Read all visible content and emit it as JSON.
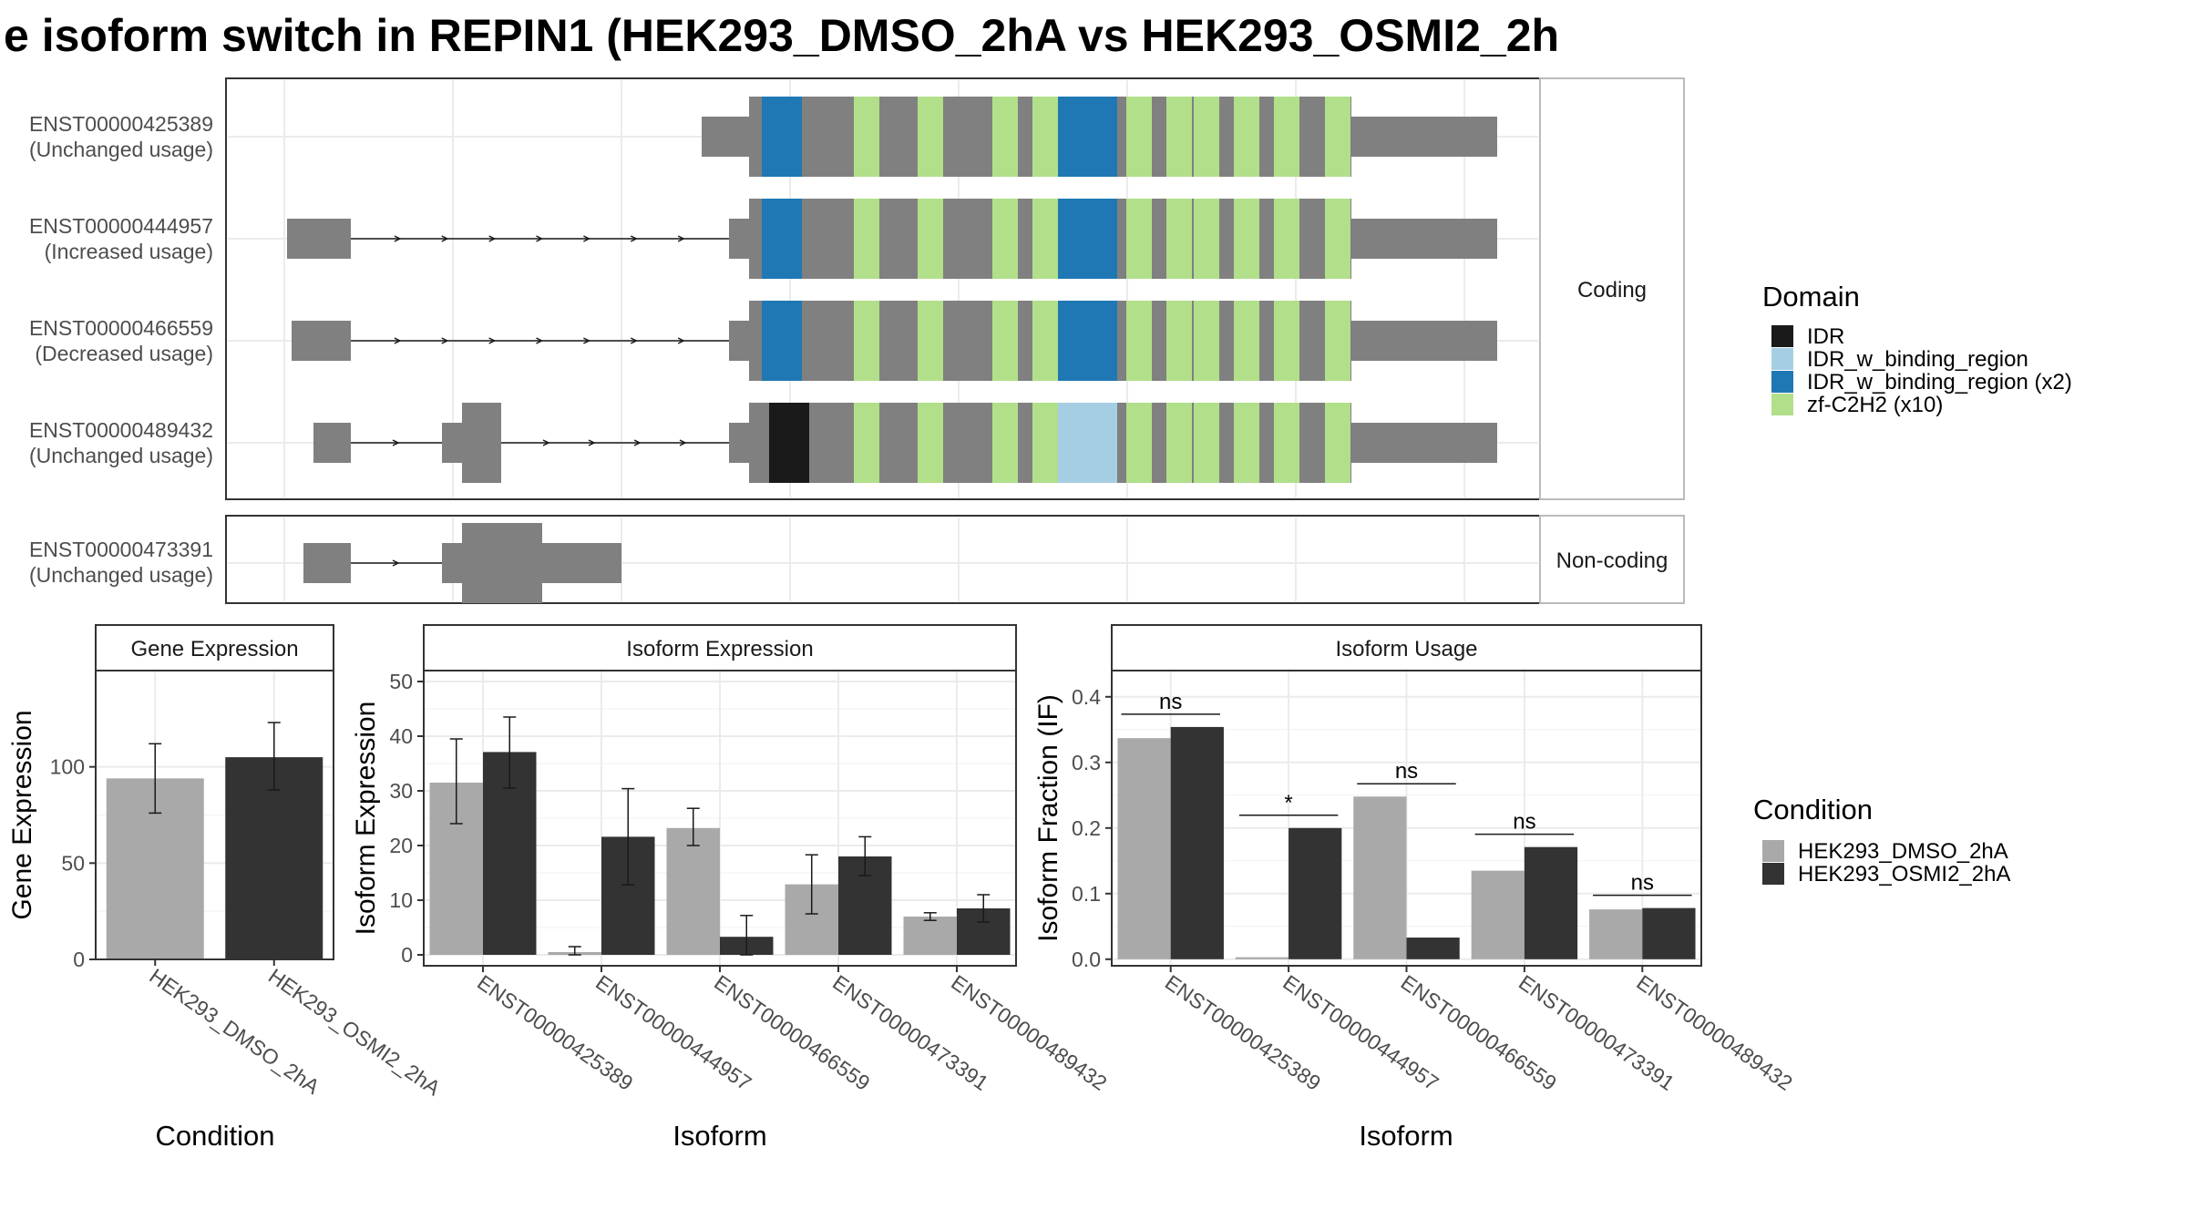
{
  "title": "e isoform switch in REPIN1 (HEK293_DMSO_2hA vs HEK293_OSMI2_2h",
  "colors": {
    "exon": "#808080",
    "idr": "#1a1a1a",
    "idr_w_binding_region": "#a6cee3",
    "idr_w_binding_region_x2": "#1f78b4",
    "zf_c2h2": "#b2df8a",
    "dmso": "#a9a9a9",
    "osmi2": "#333333"
  },
  "panels": {
    "coding_strip": "Coding",
    "noncoding_strip": "Non-coding",
    "gene_expression_strip": "Gene Expression",
    "isoform_expression_strip": "Isoform Expression",
    "isoform_usage_strip": "Isoform Usage"
  },
  "transcripts": [
    {
      "id": "ENST00000425389",
      "usage": "(Unchanged usage)",
      "group": "coding"
    },
    {
      "id": "ENST00000444957",
      "usage": "(Increased usage)",
      "group": "coding"
    },
    {
      "id": "ENST00000466559",
      "usage": "(Decreased usage)",
      "group": "coding"
    },
    {
      "id": "ENST00000489432",
      "usage": "(Unchanged usage)",
      "group": "coding"
    },
    {
      "id": "ENST00000473391",
      "usage": "(Unchanged usage)",
      "group": "noncoding"
    }
  ],
  "legend_domain": {
    "title": "Domain",
    "items": [
      {
        "label": "IDR",
        "color": "#1a1a1a"
      },
      {
        "label": "IDR_w_binding_region",
        "color": "#a6cee3"
      },
      {
        "label": "IDR_w_binding_region (x2)",
        "color": "#1f78b4"
      },
      {
        "label": "zf-C2H2 (x10)",
        "color": "#b2df8a"
      }
    ]
  },
  "legend_condition": {
    "title": "Condition",
    "items": [
      {
        "label": "HEK293_DMSO_2hA",
        "color": "#a9a9a9"
      },
      {
        "label": "HEK293_OSMI2_2hA",
        "color": "#333333"
      }
    ]
  },
  "chart_data": [
    {
      "type": "bar",
      "title": "Gene Expression",
      "xlabel": "Condition",
      "ylabel": "Gene Expression",
      "categories": [
        "HEK293_DMSO_2hA",
        "HEK293_OSMI2_2hA"
      ],
      "values": [
        94,
        105
      ],
      "err_low": [
        76,
        88
      ],
      "err_high": [
        112,
        123
      ],
      "ylim": [
        0,
        150
      ],
      "yticks": [
        0,
        50,
        100
      ]
    },
    {
      "type": "bar",
      "title": "Isoform Expression",
      "xlabel": "Isoform",
      "ylabel": "Isoform Expression",
      "categories": [
        "ENST00000425389",
        "ENST00000444957",
        "ENST00000466559",
        "ENST00000473391",
        "ENST00000489432"
      ],
      "series": [
        {
          "name": "HEK293_DMSO_2hA",
          "values": [
            31.5,
            0.5,
            23.2,
            12.9,
            7.0
          ],
          "err_low": [
            24,
            0,
            20,
            7.5,
            6.3
          ],
          "err_high": [
            39.5,
            1.5,
            26.8,
            18.3,
            7.7
          ]
        },
        {
          "name": "HEK293_OSMI2_2hA",
          "values": [
            37.1,
            21.6,
            3.3,
            18.0,
            8.5
          ],
          "err_low": [
            30.5,
            12.8,
            0,
            14.5,
            6.0
          ],
          "err_high": [
            43.5,
            30.4,
            7.2,
            21.6,
            11.0
          ]
        }
      ],
      "ylim": [
        -2,
        52
      ],
      "yticks": [
        0,
        10,
        20,
        30,
        40,
        50
      ]
    },
    {
      "type": "bar",
      "title": "Isoform Usage",
      "xlabel": "Isoform",
      "ylabel": "Isoform Fraction (IF)",
      "categories": [
        "ENST00000425389",
        "ENST00000444957",
        "ENST00000466559",
        "ENST00000473391",
        "ENST00000489432"
      ],
      "series": [
        {
          "name": "HEK293_DMSO_2hA",
          "values": [
            0.337,
            0.003,
            0.248,
            0.135,
            0.076
          ]
        },
        {
          "name": "HEK293_OSMI2_2hA",
          "values": [
            0.354,
            0.2,
            0.033,
            0.171,
            0.078
          ]
        }
      ],
      "significance": [
        "ns",
        "*",
        "ns",
        "ns",
        "ns"
      ],
      "ylim": [
        -0.01,
        0.44
      ],
      "yticks": [
        0.0,
        0.1,
        0.2,
        0.3,
        0.4
      ],
      "ytick_labels": [
        "0.0",
        "0.1",
        "0.2",
        "0.3",
        "0.4"
      ]
    }
  ]
}
